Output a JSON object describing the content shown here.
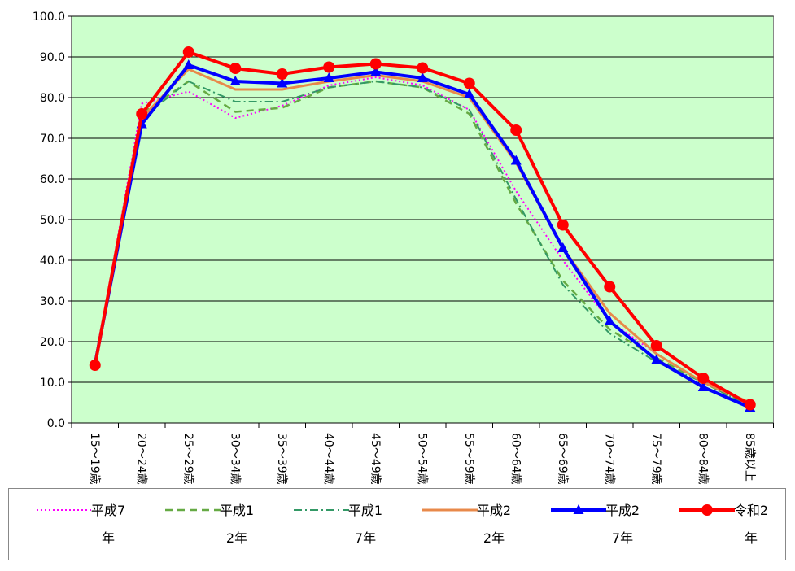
{
  "chart_data": {
    "type": "line",
    "categories": [
      "15～19歳",
      "20～24歳",
      "25～29歳",
      "30～34歳",
      "35～39歳",
      "40～44歳",
      "45～49歳",
      "50～54歳",
      "55～59歳",
      "60～64歳",
      "65～69歳",
      "70～74歳",
      "75～79歳",
      "80～84歳",
      "85歳以上"
    ],
    "ylim": [
      0,
      100
    ],
    "yticks": [
      {
        "value": 0,
        "label": "0.0"
      },
      {
        "value": 10,
        "label": "10.0"
      },
      {
        "value": 20,
        "label": "20.0"
      },
      {
        "value": 30,
        "label": "30.0"
      },
      {
        "value": 40,
        "label": "40.0"
      },
      {
        "value": 50,
        "label": "50.0"
      },
      {
        "value": 60,
        "label": "60.0"
      },
      {
        "value": 70,
        "label": "70.0"
      },
      {
        "value": 80,
        "label": "80.0"
      },
      {
        "value": 90,
        "label": "90.0"
      },
      {
        "value": 100,
        "label": "100.0"
      }
    ],
    "grid": true,
    "background": "#ccffcc",
    "series": [
      {
        "name": "平成7年",
        "color": "#ff00ff",
        "dash": "2,3",
        "line_width": 2,
        "values": [
          14.5,
          78.5,
          81.5,
          75,
          78,
          83,
          85,
          83,
          77,
          57,
          40,
          25,
          17,
          10,
          4
        ]
      },
      {
        "name": "平成12年",
        "color": "#66aa44",
        "dash": "9,6",
        "line_width": 2.5,
        "values": [
          14.5,
          76,
          84,
          76.5,
          77.5,
          82.5,
          84,
          82.5,
          76,
          54,
          35,
          23,
          16,
          10,
          4
        ]
      },
      {
        "name": "平成17年",
        "color": "#339966",
        "dash": "10,4,2,4",
        "line_width": 2,
        "values": [
          14.5,
          75,
          84,
          79,
          79,
          82.5,
          84,
          82.5,
          77,
          55,
          34,
          22,
          15,
          10,
          4
        ]
      },
      {
        "name": "平成22年",
        "color": "#e8894a",
        "line_width": 3,
        "values": [
          14.5,
          75,
          87,
          82,
          82,
          84,
          85.5,
          84,
          80,
          64,
          43,
          27,
          17,
          10,
          5
        ]
      },
      {
        "name": "平成27年",
        "color": "#0000ff",
        "line_width": 4,
        "marker": "triangle",
        "values": [
          14.5,
          73.5,
          88,
          84,
          83.5,
          84.8,
          86.3,
          84.8,
          80.8,
          64.5,
          43,
          25,
          15.5,
          8.8,
          3.8
        ]
      },
      {
        "name": "令和2年",
        "color": "#ff0000",
        "line_width": 4,
        "marker": "circle",
        "values": [
          14.2,
          76,
          91.2,
          87.2,
          85.8,
          87.5,
          88.3,
          87.3,
          83.5,
          72,
          48.7,
          33.5,
          19,
          11,
          4.5
        ]
      }
    ]
  }
}
